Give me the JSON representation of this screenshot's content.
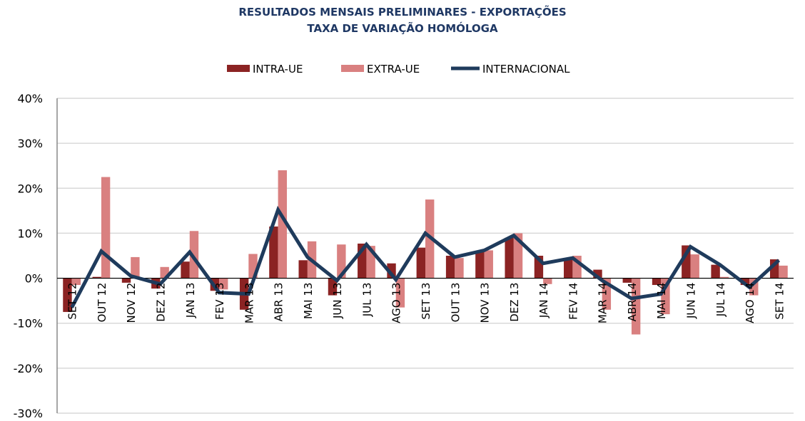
{
  "chart_data": {
    "type": "bar+line",
    "title": "RESULTADOS MENSAIS PRELIMINARES - EXPORTAÇÕES",
    "subtitle": "TAXA DE VARIAÇÃO HOMÓLOGA",
    "xlabel": "",
    "ylabel": "",
    "ylim": [
      -30,
      40
    ],
    "y_ticks": [
      "40%",
      "30%",
      "20%",
      "10%",
      "0%",
      "-10%",
      "-20%",
      "-30%"
    ],
    "y_tick_values": [
      40,
      30,
      20,
      10,
      0,
      -10,
      -20,
      -30
    ],
    "grid": true,
    "legend_position": "top",
    "categories": [
      "SET 12",
      "OUT 12",
      "NOV 12",
      "DEZ 12",
      "JAN 13",
      "FEV 13",
      "MAR 13",
      "ABR 13",
      "MAI 13",
      "JUN 13",
      "JUL 13",
      "AGO 13",
      "SET 13",
      "OUT 13",
      "NOV 13",
      "DEZ 13",
      "JAN 14",
      "FEV 14",
      "MAR 14",
      "ABR 14",
      "MAI 14",
      "JUN 14",
      "JUL 14",
      "AGO 14",
      "SET 14"
    ],
    "series": [
      {
        "name": "INTRA-UE",
        "type": "bar",
        "color": "#8b2323",
        "values": [
          -7.5,
          0.3,
          -1.0,
          -2.3,
          3.7,
          -2.8,
          -7.0,
          11.5,
          4.0,
          -3.8,
          7.7,
          3.3,
          6.8,
          5.0,
          5.8,
          9.0,
          5.0,
          4.5,
          1.9,
          -1.0,
          -1.5,
          7.3,
          3.0,
          -1.5,
          4.2
        ]
      },
      {
        "name": "EXTRA-UE",
        "type": "bar",
        "color": "#d98080",
        "values": [
          -1.5,
          22.5,
          4.7,
          2.5,
          10.5,
          -2.5,
          5.4,
          24.0,
          8.2,
          7.5,
          7.2,
          -6.5,
          17.5,
          4.5,
          6.2,
          10.0,
          -1.3,
          5.0,
          -7.0,
          -12.5,
          -8.0,
          5.3,
          0.3,
          -3.8,
          2.8
        ]
      },
      {
        "name": "INTERNACIONAL",
        "type": "line",
        "color": "#1f3b5c",
        "values": [
          -6.5,
          6.0,
          0.5,
          -1.3,
          5.8,
          -3.2,
          -3.5,
          15.2,
          4.7,
          -0.5,
          7.5,
          -0.3,
          10.0,
          4.7,
          6.2,
          9.5,
          3.3,
          4.5,
          -0.5,
          -4.5,
          -3.5,
          7.0,
          3.0,
          -2.0,
          4.0
        ]
      }
    ]
  }
}
